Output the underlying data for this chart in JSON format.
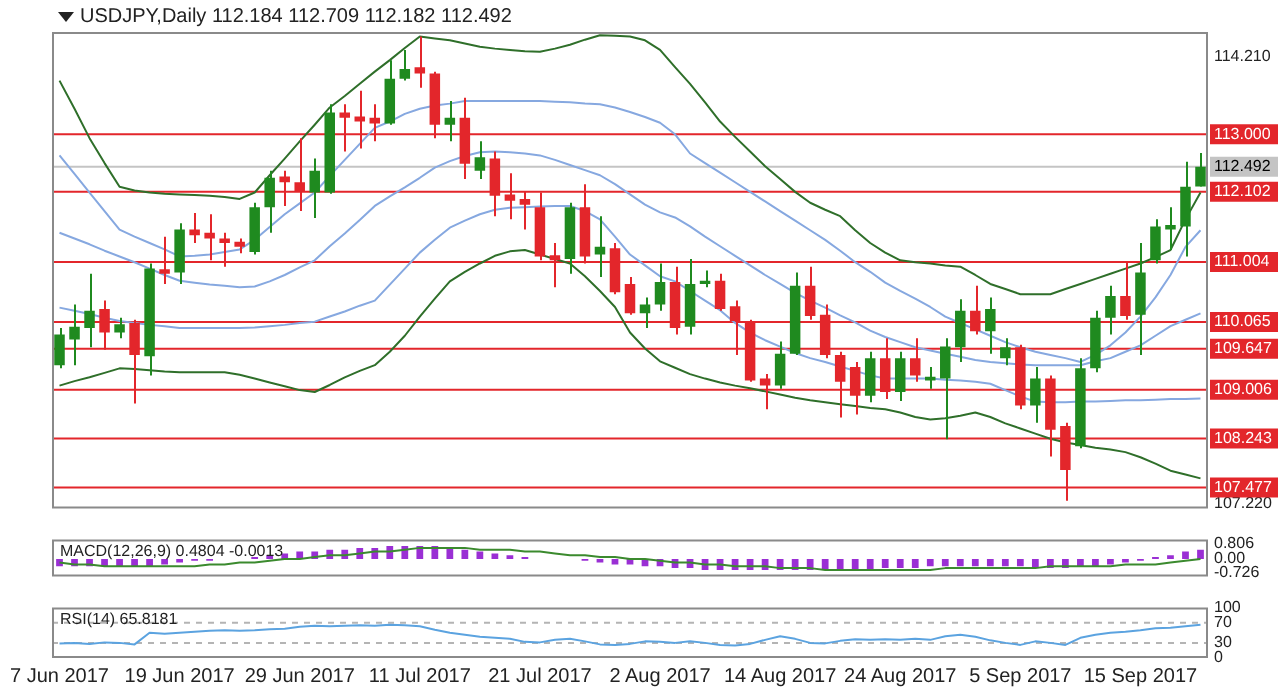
{
  "chart_data": [
    {
      "type": "candlestick",
      "title": "USDJPY,Daily 112.184 112.709 112.182 112.492",
      "categories": [
        null,
        null,
        null,
        null,
        null,
        null,
        null,
        null,
        null,
        null,
        null,
        null,
        null,
        null,
        null,
        null,
        null,
        null,
        null,
        null,
        null,
        null,
        null,
        null,
        null,
        null,
        null,
        null,
        null,
        null,
        null,
        null,
        null,
        null,
        null,
        null,
        null,
        null,
        null,
        null,
        null,
        null,
        null,
        null,
        null,
        null,
        null,
        null,
        null,
        null,
        null,
        null,
        null,
        null,
        null,
        null,
        null,
        null,
        null,
        null,
        null,
        null,
        null,
        null,
        null,
        null,
        null,
        null,
        null,
        null,
        null,
        null,
        null,
        null,
        null,
        null,
        null
      ],
      "ohlc": [
        [
          109.39,
          109.97,
          109.34,
          109.87
        ],
        [
          109.79,
          110.34,
          109.39,
          109.99
        ],
        [
          109.97,
          110.82,
          109.67,
          110.24
        ],
        [
          110.27,
          110.4,
          109.63,
          109.9
        ],
        [
          109.9,
          110.13,
          109.81,
          110.03
        ],
        [
          110.05,
          110.1,
          108.79,
          109.55
        ],
        [
          109.53,
          110.98,
          109.23,
          110.9
        ],
        [
          110.89,
          111.4,
          110.66,
          110.82
        ],
        [
          110.84,
          111.61,
          110.66,
          111.51
        ],
        [
          111.51,
          111.77,
          111.3,
          111.42
        ],
        [
          111.46,
          111.75,
          111.03,
          111.37
        ],
        [
          111.37,
          111.46,
          110.93,
          111.3
        ],
        [
          111.32,
          111.37,
          111.14,
          111.24
        ],
        [
          111.16,
          111.93,
          111.12,
          111.86
        ],
        [
          111.86,
          112.43,
          111.46,
          112.32
        ],
        [
          112.34,
          112.43,
          111.88,
          112.25
        ],
        [
          112.25,
          112.94,
          111.8,
          112.11
        ],
        [
          112.09,
          112.62,
          111.69,
          112.43
        ],
        [
          112.09,
          113.47,
          112.07,
          113.34
        ],
        [
          113.34,
          113.47,
          112.73,
          113.26
        ],
        [
          113.28,
          113.68,
          112.78,
          113.2
        ],
        [
          113.26,
          113.47,
          112.89,
          113.17
        ],
        [
          113.17,
          114.16,
          113.15,
          113.87
        ],
        [
          113.87,
          114.32,
          113.84,
          114.02
        ],
        [
          114.05,
          114.53,
          113.73,
          113.95
        ],
        [
          113.95,
          113.98,
          112.94,
          113.15
        ],
        [
          113.15,
          113.52,
          112.89,
          113.26
        ],
        [
          113.26,
          113.57,
          112.3,
          112.54
        ],
        [
          112.43,
          112.89,
          112.3,
          112.64
        ],
        [
          112.62,
          112.73,
          111.72,
          112.04
        ],
        [
          112.06,
          112.39,
          111.67,
          111.96
        ],
        [
          111.99,
          112.11,
          111.51,
          111.9
        ],
        [
          111.86,
          112.09,
          111.03,
          111.09
        ],
        [
          111.11,
          111.3,
          110.61,
          111.03
        ],
        [
          111.05,
          111.93,
          110.82,
          111.86
        ],
        [
          111.86,
          112.22,
          110.98,
          111.09
        ],
        [
          111.12,
          111.72,
          110.77,
          111.24
        ],
        [
          111.22,
          111.3,
          110.5,
          110.53
        ],
        [
          110.66,
          110.77,
          110.18,
          110.2
        ],
        [
          110.2,
          110.45,
          109.97,
          110.34
        ],
        [
          110.34,
          110.98,
          110.24,
          110.69
        ],
        [
          110.69,
          110.93,
          109.87,
          109.97
        ],
        [
          109.99,
          111.05,
          109.87,
          110.66
        ],
        [
          110.66,
          110.87,
          110.61,
          110.71
        ],
        [
          110.71,
          110.82,
          110.24,
          110.27
        ],
        [
          110.31,
          110.4,
          109.55,
          110.08
        ],
        [
          110.06,
          110.1,
          109.13,
          109.15
        ],
        [
          109.18,
          109.25,
          108.7,
          109.07
        ],
        [
          109.07,
          109.76,
          109.02,
          109.57
        ],
        [
          109.57,
          110.84,
          109.55,
          110.63
        ],
        [
          110.63,
          110.93,
          110.1,
          110.16
        ],
        [
          110.18,
          110.34,
          109.5,
          109.55
        ],
        [
          109.55,
          109.6,
          108.57,
          109.13
        ],
        [
          109.36,
          109.44,
          108.62,
          108.91
        ],
        [
          108.91,
          109.6,
          108.81,
          109.5
        ],
        [
          109.5,
          109.81,
          108.86,
          108.97
        ],
        [
          108.97,
          109.6,
          108.83,
          109.5
        ],
        [
          109.5,
          109.81,
          109.13,
          109.23
        ],
        [
          109.15,
          109.36,
          109.02,
          109.21
        ],
        [
          109.18,
          109.81,
          108.23,
          109.68
        ],
        [
          109.67,
          110.42,
          109.44,
          110.24
        ],
        [
          110.24,
          110.63,
          109.87,
          109.92
        ],
        [
          109.92,
          110.45,
          109.57,
          110.27
        ],
        [
          109.5,
          109.81,
          109.39,
          109.67
        ],
        [
          109.67,
          109.71,
          108.7,
          108.76
        ],
        [
          108.76,
          109.36,
          108.49,
          109.18
        ],
        [
          109.18,
          109.23,
          107.96,
          108.38
        ],
        [
          108.44,
          108.49,
          107.27,
          107.75
        ],
        [
          108.12,
          109.5,
          108.09,
          109.34
        ],
        [
          109.34,
          110.24,
          109.28,
          110.13
        ],
        [
          110.13,
          110.63,
          109.87,
          110.47
        ],
        [
          110.47,
          111.01,
          110.1,
          110.16
        ],
        [
          110.18,
          111.3,
          109.55,
          110.84
        ],
        [
          111.03,
          111.67,
          110.98,
          111.56
        ],
        [
          111.51,
          111.86,
          111.19,
          111.58
        ],
        [
          111.56,
          112.57,
          111.09,
          112.18
        ],
        [
          112.184,
          112.709,
          112.182,
          112.492
        ]
      ],
      "colors": [
        "#1f8a1f",
        "#1f8a1f",
        "#1f8a1f",
        "#e3262b",
        "#1f8a1f",
        "#e3262b",
        "#1f8a1f",
        "#e3262b",
        "#1f8a1f",
        "#e3262b",
        "#e3262b",
        "#e3262b",
        "#e3262b",
        "#1f8a1f",
        "#1f8a1f",
        "#e3262b",
        "#e3262b",
        "#1f8a1f",
        "#1f8a1f",
        "#e3262b",
        "#e3262b",
        "#e3262b",
        "#1f8a1f",
        "#1f8a1f",
        "#e3262b",
        "#e3262b",
        "#1f8a1f",
        "#e3262b",
        "#1f8a1f",
        "#e3262b",
        "#e3262b",
        "#e3262b",
        "#e3262b",
        "#e3262b",
        "#1f8a1f",
        "#e3262b",
        "#1f8a1f",
        "#e3262b",
        "#e3262b",
        "#1f8a1f",
        "#1f8a1f",
        "#e3262b",
        "#1f8a1f",
        "#1f8a1f",
        "#e3262b",
        "#e3262b",
        "#e3262b",
        "#e3262b",
        "#1f8a1f",
        "#1f8a1f",
        "#e3262b",
        "#e3262b",
        "#e3262b",
        "#e3262b",
        "#1f8a1f",
        "#e3262b",
        "#1f8a1f",
        "#e3262b",
        "#1f8a1f",
        "#1f8a1f",
        "#1f8a1f",
        "#e3262b",
        "#1f8a1f",
        "#1f8a1f",
        "#e3262b",
        "#1f8a1f",
        "#e3262b",
        "#e3262b",
        "#1f8a1f",
        "#1f8a1f",
        "#1f8a1f",
        "#e3262b",
        "#1f8a1f",
        "#1f8a1f",
        "#1f8a1f",
        "#1f8a1f",
        "#1f8a1f"
      ],
      "series": [
        {
          "type": "line",
          "color": "#2f6f2a",
          "values": [
            113.84,
            113.4,
            112.94,
            112.55,
            112.18,
            112.12,
            112.09,
            112.07,
            112.06,
            112.05,
            112.04,
            112.02,
            111.99,
            112.09,
            112.36,
            112.62,
            112.89,
            113.15,
            113.42,
            113.6,
            113.79,
            113.98,
            114.16,
            114.35,
            114.53,
            114.5,
            114.47,
            114.42,
            114.37,
            114.34,
            114.32,
            114.3,
            114.29,
            114.34,
            114.4,
            114.48,
            114.55,
            114.54,
            114.53,
            114.47,
            114.32,
            114.05,
            113.79,
            113.5,
            113.2,
            112.96,
            112.73,
            112.5,
            112.3,
            112.1,
            111.93,
            111.82,
            111.72,
            111.5,
            111.3,
            111.15,
            111.03,
            111.0,
            110.98,
            110.95,
            110.93,
            110.8,
            110.66,
            110.58,
            110.5,
            110.5,
            110.5,
            110.58,
            110.66,
            110.74,
            110.82,
            110.9,
            110.98,
            111.08,
            111.19,
            111.67,
            112.09
          ]
        },
        {
          "type": "line",
          "color": "#86a8e0",
          "values": [
            112.67,
            112.38,
            112.09,
            111.8,
            111.51,
            111.4,
            111.3,
            111.2,
            111.09,
            111.1,
            111.12,
            111.16,
            111.2,
            111.35,
            111.55,
            111.75,
            111.92,
            112.09,
            112.35,
            112.6,
            112.85,
            113.1,
            113.2,
            113.32,
            113.4,
            113.45,
            113.48,
            113.52,
            113.52,
            113.52,
            113.52,
            113.52,
            113.52,
            113.51,
            113.5,
            113.48,
            113.47,
            113.42,
            113.35,
            113.27,
            113.18,
            113.0,
            112.7,
            112.55,
            112.4,
            112.25,
            112.1,
            111.95,
            111.8,
            111.65,
            111.5,
            111.35,
            111.18,
            111.0,
            110.85,
            110.68,
            110.55,
            110.43,
            110.3,
            110.15,
            110.05,
            109.95,
            109.85,
            109.75,
            109.67,
            109.6,
            109.55,
            109.5,
            109.44,
            109.55,
            109.7,
            109.9,
            110.15,
            110.45,
            110.8,
            111.24,
            111.5
          ]
        },
        {
          "type": "line",
          "color": "#86a8e0",
          "values": [
            111.46,
            111.37,
            111.28,
            111.18,
            111.09,
            111.0,
            110.9,
            110.8,
            110.71,
            110.68,
            110.65,
            110.63,
            110.61,
            110.62,
            110.7,
            110.8,
            110.92,
            111.03,
            111.25,
            111.45,
            111.66,
            111.88,
            112.03,
            112.17,
            112.32,
            112.48,
            112.58,
            112.66,
            112.72,
            112.73,
            112.72,
            112.7,
            112.67,
            112.6,
            112.52,
            112.44,
            112.36,
            112.22,
            112.06,
            111.9,
            111.78,
            111.7,
            111.56,
            111.4,
            111.25,
            111.1,
            110.95,
            110.8,
            110.66,
            110.52,
            110.4,
            110.29,
            110.17,
            110.06,
            109.93,
            109.83,
            109.75,
            109.67,
            109.62,
            109.57,
            109.52,
            109.47,
            109.44,
            109.42,
            109.4,
            109.39,
            109.39,
            109.39,
            109.39,
            109.45,
            109.5,
            109.6,
            109.7,
            109.85,
            110.0,
            110.1,
            110.2
          ]
        },
        {
          "type": "line",
          "color": "#86a8e0",
          "values": [
            110.29,
            110.24,
            110.19,
            110.13,
            110.08,
            110.05,
            110.02,
            110.0,
            109.97,
            109.97,
            109.97,
            109.97,
            109.97,
            109.98,
            110.0,
            110.02,
            110.05,
            110.07,
            110.15,
            110.23,
            110.32,
            110.4,
            110.65,
            110.9,
            111.15,
            111.35,
            111.54,
            111.65,
            111.75,
            111.82,
            111.85,
            111.86,
            111.87,
            111.88,
            111.88,
            111.8,
            111.67,
            111.4,
            111.12,
            110.95,
            110.78,
            110.7,
            110.55,
            110.4,
            110.25,
            110.05,
            109.9,
            109.78,
            109.68,
            109.58,
            109.5,
            109.44,
            109.37,
            109.3,
            109.23,
            109.18,
            109.18,
            109.18,
            109.18,
            109.16,
            109.15,
            109.13,
            109.1,
            109.0,
            108.9,
            108.82,
            108.81,
            108.81,
            108.82,
            108.82,
            108.83,
            108.84,
            108.84,
            108.85,
            108.86,
            108.86,
            108.87
          ]
        },
        {
          "type": "line",
          "color": "#2f6f2a",
          "values": [
            109.07,
            109.14,
            109.2,
            109.27,
            109.34,
            109.33,
            109.31,
            109.29,
            109.28,
            109.28,
            109.28,
            109.28,
            109.24,
            109.18,
            109.12,
            109.06,
            109.0,
            108.97,
            109.08,
            109.2,
            109.3,
            109.39,
            109.6,
            109.85,
            110.15,
            110.43,
            110.7,
            110.85,
            110.98,
            111.1,
            111.17,
            111.19,
            111.12,
            111.05,
            110.98,
            110.78,
            110.55,
            110.3,
            109.9,
            109.65,
            109.45,
            109.35,
            109.25,
            109.18,
            109.12,
            109.07,
            109.03,
            108.98,
            108.93,
            108.88,
            108.84,
            108.81,
            108.78,
            108.75,
            108.72,
            108.7,
            108.65,
            108.58,
            108.54,
            108.56,
            108.6,
            108.65,
            108.58,
            108.48,
            108.4,
            108.32,
            108.24,
            108.18,
            108.14,
            108.1,
            108.07,
            108.03,
            107.95,
            107.85,
            107.74,
            107.68,
            107.62
          ]
        }
      ],
      "ylim": [
        107.15,
        114.6
      ],
      "yticks": [
        {
          "value": 114.21,
          "label": "114.210"
        },
        {
          "value": 107.22,
          "label": "107.220"
        }
      ],
      "ref_lines": [
        {
          "axis": "y",
          "value": 113,
          "label": "113.000",
          "color": "#e3262b"
        },
        {
          "axis": "y",
          "value": 112.492,
          "label": "112.492",
          "color": "#c4c4c4"
        },
        {
          "axis": "y",
          "value": 112.102,
          "label": "112.102",
          "color": "#e3262b"
        },
        {
          "axis": "y",
          "value": 111.004,
          "label": "111.004",
          "color": "#e3262b"
        },
        {
          "axis": "y",
          "value": 110.065,
          "label": "110.065",
          "color": "#e3262b"
        },
        {
          "axis": "y",
          "value": 109.647,
          "label": "109.647",
          "color": "#e3262b"
        },
        {
          "axis": "y",
          "value": 109.006,
          "label": "109.006",
          "color": "#e3262b"
        },
        {
          "axis": "y",
          "value": 108.243,
          "label": "108.243",
          "color": "#e3262b"
        },
        {
          "axis": "y",
          "value": 107.477,
          "label": "107.477",
          "color": "#e3262b"
        }
      ],
      "tick_labels": "y"
    },
    {
      "type": "bar",
      "title": "MACD(12,26,9) 0.4804 -0.0013",
      "categories": [
        null,
        null,
        null,
        null,
        null,
        null,
        null,
        null,
        null,
        null,
        null,
        null,
        null,
        null,
        null,
        null,
        null,
        null,
        null,
        null,
        null,
        null,
        null,
        null,
        null,
        null,
        null,
        null,
        null,
        null,
        null,
        null,
        null,
        null,
        null,
        null,
        null,
        null,
        null,
        null,
        null,
        null,
        null,
        null,
        null,
        null,
        null,
        null,
        null,
        null,
        null,
        null,
        null,
        null,
        null,
        null,
        null,
        null,
        null,
        null,
        null,
        null,
        null,
        null,
        null,
        null,
        null,
        null,
        null,
        null,
        null,
        null,
        null,
        null,
        null,
        null,
        null
      ],
      "series": [
        {
          "color": "#9a2fd4",
          "values": [
            -0.4,
            -0.4,
            -0.4,
            -0.4,
            -0.4,
            -0.4,
            -0.4,
            -0.3,
            -0.2,
            -0.1,
            -0.1,
            0,
            0,
            0.1,
            0.2,
            0.3,
            0.4,
            0.4,
            0.5,
            0.5,
            0.6,
            0.6,
            0.7,
            0.7,
            0.7,
            0.7,
            0.6,
            0.5,
            0.4,
            0.3,
            0.2,
            0.1,
            0,
            0,
            0,
            -0.1,
            -0.2,
            -0.3,
            -0.3,
            -0.4,
            -0.4,
            -0.5,
            -0.5,
            -0.6,
            -0.6,
            -0.6,
            -0.6,
            -0.6,
            -0.6,
            -0.6,
            -0.6,
            -0.6,
            -0.6,
            -0.6,
            -0.6,
            -0.5,
            -0.5,
            -0.5,
            -0.4,
            -0.4,
            -0.4,
            -0.4,
            -0.4,
            -0.4,
            -0.4,
            -0.5,
            -0.5,
            -0.5,
            -0.4,
            -0.4,
            -0.3,
            -0.2,
            -0.1,
            0.1,
            0.2,
            0.4,
            0.5
          ]
        },
        {
          "type": "line",
          "color": "#3b8a2e",
          "values": [
            -0.2,
            -0.3,
            -0.3,
            -0.4,
            -0.4,
            -0.4,
            -0.4,
            -0.4,
            -0.4,
            -0.4,
            -0.3,
            -0.3,
            -0.2,
            -0.2,
            -0.1,
            0,
            0,
            0.1,
            0.2,
            0.2,
            0.3,
            0.4,
            0.4,
            0.5,
            0.6,
            0.6,
            0.6,
            0.6,
            0.5,
            0.5,
            0.5,
            0.4,
            0.4,
            0.3,
            0.2,
            0.2,
            0.1,
            0.1,
            0,
            0,
            -0.1,
            -0.2,
            -0.2,
            -0.3,
            -0.3,
            -0.4,
            -0.4,
            -0.4,
            -0.5,
            -0.5,
            -0.5,
            -0.6,
            -0.6,
            -0.6,
            -0.6,
            -0.6,
            -0.6,
            -0.6,
            -0.6,
            -0.5,
            -0.5,
            -0.5,
            -0.5,
            -0.5,
            -0.5,
            -0.5,
            -0.4,
            -0.4,
            -0.4,
            -0.4,
            -0.4,
            -0.3,
            -0.3,
            -0.3,
            -0.2,
            -0.1,
            0
          ]
        }
      ],
      "ylim": [
        -0.95,
        1.05
      ],
      "yticks": [
        0.806,
        {
          "value": 0,
          "label": "0.00"
        },
        -0.726
      ],
      "tick_labels": "y"
    },
    {
      "type": "line",
      "title": "RSI(14) 65.8181",
      "categories": [
        "7 Jun 2017",
        null,
        null,
        null,
        null,
        null,
        null,
        null,
        "19 Jun 2017",
        null,
        null,
        null,
        null,
        null,
        null,
        null,
        "29 Jun 2017",
        null,
        null,
        null,
        null,
        null,
        null,
        null,
        "11 Jul 2017",
        null,
        null,
        null,
        null,
        null,
        null,
        null,
        "21 Jul 2017",
        null,
        null,
        null,
        null,
        null,
        null,
        null,
        "2 Aug 2017",
        null,
        null,
        null,
        null,
        null,
        null,
        null,
        "14 Aug 2017",
        null,
        null,
        null,
        null,
        null,
        null,
        null,
        "24 Aug 2017",
        null,
        null,
        null,
        null,
        null,
        null,
        null,
        "5 Sep 2017",
        null,
        null,
        null,
        null,
        null,
        null,
        null,
        "15 Sep 2017",
        null,
        null,
        null,
        null
      ],
      "series": [
        {
          "color": "#5ba3e0",
          "values": [
            29,
            30,
            28,
            31,
            30,
            27,
            50,
            48,
            50,
            52,
            54,
            55,
            54,
            55,
            57,
            58,
            62,
            64,
            63,
            64,
            65,
            64,
            66,
            65,
            63,
            56,
            50,
            46,
            42,
            40,
            38,
            32,
            31,
            36,
            38,
            33,
            27,
            26,
            28,
            33,
            32,
            30,
            33,
            30,
            26,
            25,
            28,
            36,
            43,
            38,
            30,
            29,
            34,
            37,
            36,
            37,
            36,
            38,
            36,
            43,
            46,
            42,
            35,
            30,
            26,
            33,
            30,
            26,
            40,
            46,
            50,
            52,
            55,
            59,
            60,
            63,
            66
          ]
        }
      ],
      "ylim": [
        0,
        100
      ],
      "yticks": [
        100,
        70,
        30,
        0
      ],
      "ref_lines": [
        {
          "axis": "y",
          "value": 70,
          "color": "#b4b4b4",
          "line_style": "dashed"
        },
        {
          "axis": "y",
          "value": 30,
          "color": "#b4b4b4",
          "line_style": "dashed"
        }
      ]
    }
  ]
}
